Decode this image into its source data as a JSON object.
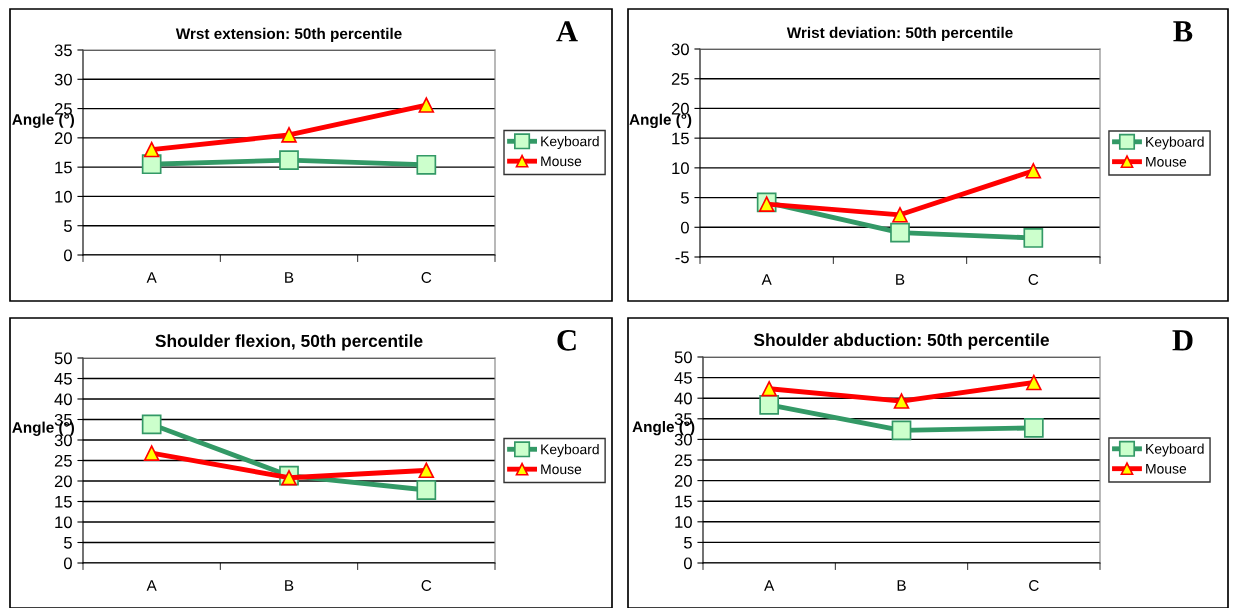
{
  "chart_data": [
    {
      "type": "line",
      "title": "Wrst extension: 50th percentile",
      "ylabel": "Angle (°)",
      "categories": [
        "A",
        "B",
        "C"
      ],
      "ylim": [
        0,
        35
      ],
      "yticks": [
        0,
        5,
        10,
        15,
        20,
        25,
        30,
        35
      ],
      "grid": "y",
      "legend": "right",
      "annotations": [
        "A"
      ],
      "series": [
        {
          "name": "Keyboard",
          "color": "#339966",
          "marker": "square",
          "values": [
            15.5,
            16.2,
            15.4
          ]
        },
        {
          "name": "Mouse",
          "color": "#ff0000",
          "marker": "triangle",
          "values": [
            18.0,
            20.5,
            25.6
          ]
        }
      ]
    },
    {
      "type": "line",
      "title": "Wrist deviation: 50th percentile",
      "ylabel": "Angle (°)",
      "categories": [
        "A",
        "B",
        "C"
      ],
      "ylim": [
        -5,
        30
      ],
      "yticks": [
        -5,
        0,
        5,
        10,
        15,
        20,
        25,
        30
      ],
      "grid": "y",
      "legend": "right",
      "annotations": [
        "B"
      ],
      "series": [
        {
          "name": "Keyboard",
          "color": "#339966",
          "marker": "square",
          "values": [
            4.2,
            -0.9,
            -1.8
          ]
        },
        {
          "name": "Mouse",
          "color": "#ff0000",
          "marker": "triangle",
          "values": [
            3.9,
            2.1,
            9.5
          ]
        }
      ]
    },
    {
      "type": "line",
      "title": "Shoulder flexion, 50th percentile",
      "ylabel": "Angle (°)",
      "categories": [
        "A",
        "B",
        "C"
      ],
      "ylim": [
        0,
        50
      ],
      "yticks": [
        0,
        5,
        10,
        15,
        20,
        25,
        30,
        35,
        40,
        45,
        50
      ],
      "grid": "y",
      "legend": "right",
      "annotations": [
        "C"
      ],
      "series": [
        {
          "name": "Keyboard",
          "color": "#339966",
          "marker": "square",
          "values": [
            33.8,
            21.3,
            17.8
          ]
        },
        {
          "name": "Mouse",
          "color": "#ff0000",
          "marker": "triangle",
          "values": [
            26.8,
            20.8,
            22.6
          ]
        }
      ]
    },
    {
      "type": "line",
      "title": "Shoulder abduction: 50th percentile",
      "ylabel": "Angle (°)",
      "categories": [
        "A",
        "B",
        "C"
      ],
      "ylim": [
        0,
        50
      ],
      "yticks": [
        0,
        5,
        10,
        15,
        20,
        25,
        30,
        35,
        40,
        45,
        50
      ],
      "grid": "y",
      "legend": "right",
      "annotations": [
        "D"
      ],
      "series": [
        {
          "name": "Keyboard",
          "color": "#339966",
          "marker": "square",
          "values": [
            38.4,
            32.2,
            32.8
          ]
        },
        {
          "name": "Mouse",
          "color": "#ff0000",
          "marker": "triangle",
          "values": [
            42.3,
            39.3,
            43.8
          ]
        }
      ]
    }
  ]
}
